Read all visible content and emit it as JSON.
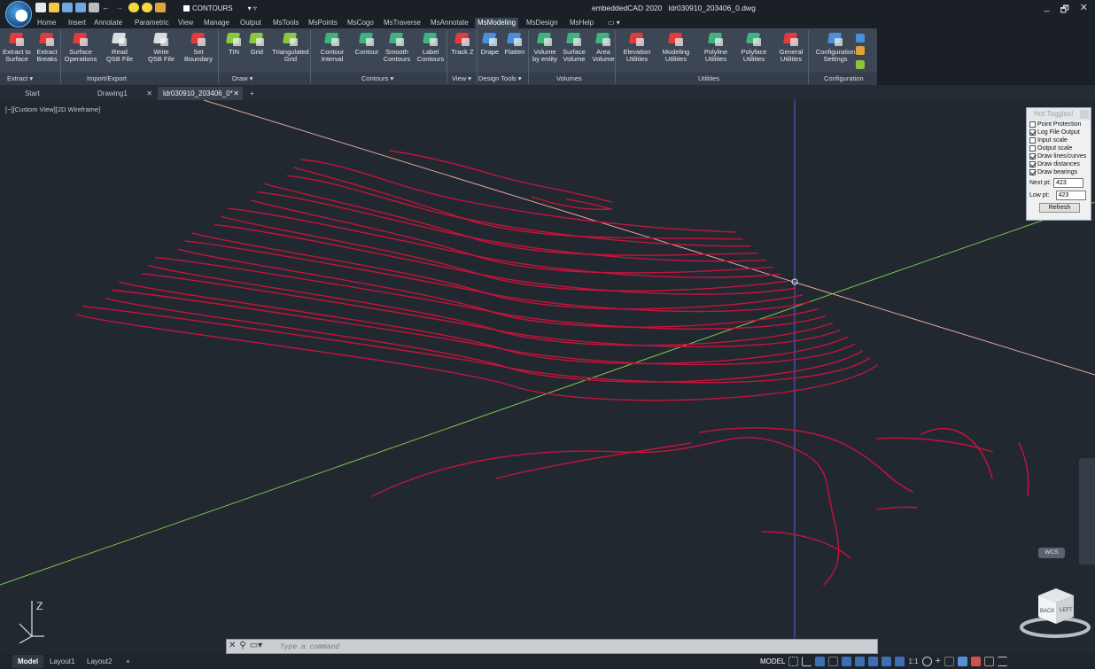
{
  "titlebar": {
    "app_name": "embeddedCAD 2020",
    "file_name": "ldr030910_203406_0.dwg",
    "layer": "CONTOURS",
    "minimize": "_",
    "restore": "🗗",
    "close": "✕"
  },
  "menu_tabs": [
    "Home",
    "Insert",
    "Annotate",
    "Parametric",
    "View",
    "Manage",
    "Output",
    "MsTools",
    "MsPoints",
    "MsCogo",
    "MsTraverse",
    "MsAnnotate",
    "MsModeling",
    "MsDesign",
    "MsHelp"
  ],
  "active_menu_tab": "MsModeling",
  "ribbon": {
    "buttons": [
      {
        "id": "extract-to-surface",
        "line1": "Extract to",
        "line2": "Surface",
        "icon": "extract-to-surface-icon",
        "color": "#e23b3b"
      },
      {
        "id": "extract-breaks",
        "line1": "Extract",
        "line2": "Breaks",
        "icon": "extract-breaks-icon",
        "color": "#e23b3b"
      },
      {
        "id": "surface-operations",
        "line1": "Surface",
        "line2": "Operations",
        "icon": "surface-operations-icon",
        "color": "#e23b3b"
      },
      {
        "id": "read-qsb",
        "line1": "Read",
        "line2": "QSB File",
        "icon": "read-qsb-icon",
        "color": "#d9dde2"
      },
      {
        "id": "write-qsb",
        "line1": "Write",
        "line2": "QSB File",
        "icon": "write-qsb-icon",
        "color": "#d9dde2"
      },
      {
        "id": "set-boundary",
        "line1": "Set",
        "line2": "Boundary",
        "icon": "set-boundary-icon",
        "color": "#e23b3b"
      },
      {
        "id": "tin",
        "line1": "TIN",
        "line2": "",
        "icon": "tin-icon",
        "color": "#8cc63f"
      },
      {
        "id": "grid",
        "line1": "Grid",
        "line2": "",
        "icon": "grid-icon",
        "color": "#8cc63f"
      },
      {
        "id": "triangulated-grid",
        "line1": "Triangulated",
        "line2": "Grid",
        "icon": "triangulated-grid-icon",
        "color": "#8cc63f"
      },
      {
        "id": "contour-interval",
        "line1": "Contour",
        "line2": "Interval",
        "icon": "contour-interval-icon",
        "color": "#3fb27f"
      },
      {
        "id": "contour",
        "line1": "Contour",
        "line2": "",
        "icon": "contour-icon",
        "color": "#3fb27f"
      },
      {
        "id": "smooth-contours",
        "line1": "Smooth",
        "line2": "Contours",
        "icon": "smooth-contours-icon",
        "color": "#3fb27f"
      },
      {
        "id": "label-contours",
        "line1": "Label",
        "line2": "Contours",
        "icon": "label-contours-icon",
        "color": "#3fb27f"
      },
      {
        "id": "track-z",
        "line1": "Track Z",
        "line2": "",
        "icon": "track-z-icon",
        "color": "#e23b3b"
      },
      {
        "id": "drape",
        "line1": "Drape",
        "line2": "",
        "icon": "drape-icon",
        "color": "#4a90d9"
      },
      {
        "id": "flatten",
        "line1": "Flatten",
        "line2": "",
        "icon": "flatten-icon",
        "color": "#4a90d9"
      },
      {
        "id": "volume-by-entity",
        "line1": "Volume",
        "line2": "by entity",
        "icon": "volume-by-entity-icon",
        "color": "#3fb27f"
      },
      {
        "id": "surface-volume",
        "line1": "Surface",
        "line2": "Volume",
        "icon": "surface-volume-icon",
        "color": "#3fb27f"
      },
      {
        "id": "area-volume",
        "line1": "Area",
        "line2": "Volume",
        "icon": "area-volume-icon",
        "color": "#3fb27f"
      },
      {
        "id": "elevation-utilities",
        "line1": "Elevation",
        "line2": "Utilities",
        "icon": "elevation-utilities-icon",
        "color": "#e23b3b"
      },
      {
        "id": "modeling-utilities",
        "line1": "Modeling",
        "line2": "Utilities",
        "icon": "modeling-utilities-icon",
        "color": "#e23b3b"
      },
      {
        "id": "polyline-utilities",
        "line1": "Polyline",
        "line2": "Utilities",
        "icon": "polyline-utilities-icon",
        "color": "#3fb27f"
      },
      {
        "id": "polyface-utilities",
        "line1": "Polyface",
        "line2": "Utilities",
        "icon": "polyface-utilities-icon",
        "color": "#3fb27f"
      },
      {
        "id": "general-utilities",
        "line1": "General",
        "line2": "Utilities",
        "icon": "general-utilities-icon",
        "color": "#e23b3b"
      },
      {
        "id": "configuration-settings",
        "line1": "Configuration",
        "line2": "Settings",
        "icon": "configuration-settings-icon",
        "color": "#4a90d9"
      }
    ],
    "panels": [
      {
        "label": "Extract ▾"
      },
      {
        "label": "Import/Export"
      },
      {
        "label": "Draw ▾"
      },
      {
        "label": "Contours ▾"
      },
      {
        "label": "View ▾"
      },
      {
        "label": "Design Tools ▾"
      },
      {
        "label": "Volumes"
      },
      {
        "label": "Utilities"
      },
      {
        "label": "Configuration"
      }
    ]
  },
  "doc_tabs": {
    "start": "Start",
    "drawing1": "Drawing1",
    "active": "ldr030910_203406_0*",
    "close_glyph": "✕",
    "new_glyph": "+"
  },
  "viewport_label": "[−][Custom View][2D Wireframe]",
  "hot_toggles": {
    "title": "Hot Toggles!",
    "items": [
      {
        "label": "Point Protection",
        "checked": false
      },
      {
        "label": "Log File Output",
        "checked": true
      },
      {
        "label": "Input scale",
        "checked": false
      },
      {
        "label": "Output scale",
        "checked": false
      },
      {
        "label": "Draw lines/curves",
        "checked": true
      },
      {
        "label": "Draw distances",
        "checked": true
      },
      {
        "label": "Draw bearings",
        "checked": true
      }
    ],
    "next_pt_label": "Next pt:",
    "next_pt_value": "423",
    "low_pt_label": "Low pt:",
    "low_pt_value": "423",
    "refresh": "Refresh"
  },
  "wcs_label": "WCS",
  "viewcube": {
    "face1": "BACK",
    "face2": "LEFT"
  },
  "ucs_label": "Z",
  "command_line": {
    "placeholder": "Type a command"
  },
  "status_bar": {
    "layout_tabs": [
      "Model",
      "Layout1",
      "Layout2"
    ],
    "add_tab": "+",
    "mode": "MODEL",
    "scale": "1:1"
  },
  "colors": {
    "contour": "#c4143c",
    "x_axis": "#e8a49a",
    "y_axis": "#79c84a",
    "z_axis": "#5b5fd0"
  }
}
